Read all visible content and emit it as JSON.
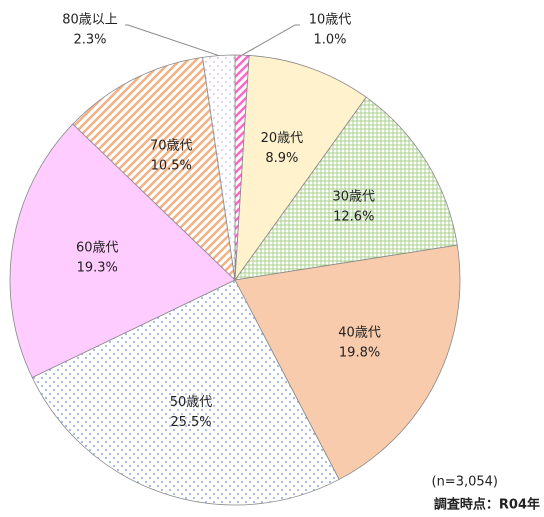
{
  "chart_data": {
    "type": "pie",
    "categories": [
      "10歳代",
      "20歳代",
      "30歳代",
      "40歳代",
      "50歳代",
      "60歳代",
      "70歳代",
      "80歳以上"
    ],
    "values": [
      1.0,
      8.9,
      12.6,
      19.8,
      25.5,
      19.3,
      10.5,
      2.3
    ],
    "value_labels": [
      "1.0%",
      "8.9%",
      "12.6%",
      "19.8%",
      "25.5%",
      "19.3%",
      "10.5%",
      "2.3%"
    ],
    "colors": [
      "#ff66cc",
      "#fff2cc",
      "#a9d08e",
      "#f8cbad",
      "#8ea9db",
      "#ffccff",
      "#f4b183",
      "#d9c8f0"
    ],
    "annotations": [
      "(n=3,054)",
      "調査時点：R04年"
    ]
  }
}
